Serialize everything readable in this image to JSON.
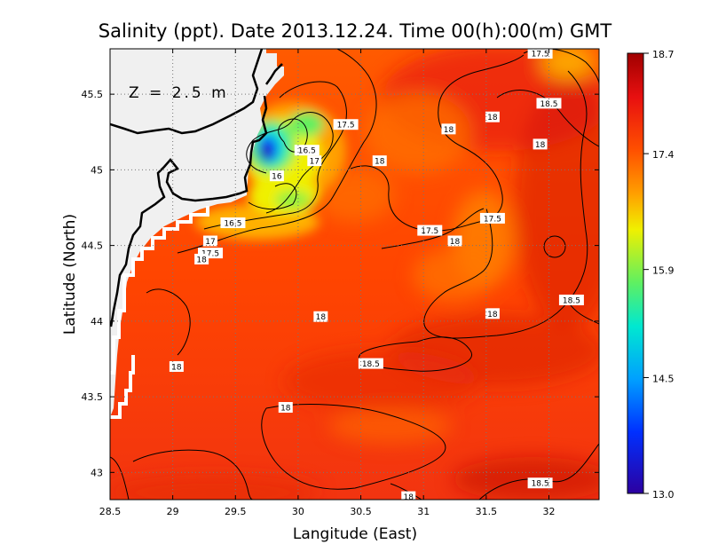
{
  "chart_data": {
    "type": "heatmap",
    "title": "Salinity (ppt). Date 2013.12.24. Time 00(h):00(m) GMT",
    "xlabel": "Langitude (East)",
    "ylabel": "Latitude (North)",
    "annotation": "Z = 2.5 m",
    "xlim": [
      28.5,
      32.4
    ],
    "ylim": [
      42.82,
      45.8
    ],
    "x_ticks": [
      "28.5",
      "29",
      "29.5",
      "30",
      "30.5",
      "31",
      "31.5",
      "32"
    ],
    "x_tick_values": [
      28.5,
      29,
      29.5,
      30,
      30.5,
      31,
      31.5,
      32
    ],
    "y_ticks": [
      "43",
      "43.5",
      "44",
      "44.5",
      "45",
      "45.5"
    ],
    "y_tick_values": [
      43,
      43.5,
      44,
      44.5,
      45,
      45.5
    ],
    "grid": true,
    "colorbar": {
      "min": 13.0,
      "max": 18.7,
      "tick_labels": [
        "18.7",
        "17.4",
        "15.9",
        "14.5",
        "13.0"
      ],
      "tick_values": [
        18.7,
        17.4,
        15.9,
        14.5,
        13.0
      ]
    },
    "contour_labels": [
      {
        "text": "17.5",
        "lon": 31.93,
        "lat": 45.77
      },
      {
        "text": "17.5",
        "lon": 30.38,
        "lat": 45.3
      },
      {
        "text": "18",
        "lon": 31.55,
        "lat": 45.35
      },
      {
        "text": "18.5",
        "lon": 32.0,
        "lat": 45.44
      },
      {
        "text": "18",
        "lon": 31.2,
        "lat": 45.27
      },
      {
        "text": "18",
        "lon": 31.93,
        "lat": 45.17
      },
      {
        "text": "16.5",
        "lon": 30.07,
        "lat": 45.13
      },
      {
        "text": "17",
        "lon": 30.13,
        "lat": 45.06
      },
      {
        "text": "18",
        "lon": 30.65,
        "lat": 45.06
      },
      {
        "text": "16",
        "lon": 29.83,
        "lat": 44.96
      },
      {
        "text": "16.5",
        "lon": 29.48,
        "lat": 44.65
      },
      {
        "text": "17.5",
        "lon": 31.55,
        "lat": 44.68
      },
      {
        "text": "17.5",
        "lon": 31.05,
        "lat": 44.6
      },
      {
        "text": "18",
        "lon": 31.25,
        "lat": 44.53
      },
      {
        "text": "17",
        "lon": 29.3,
        "lat": 44.53
      },
      {
        "text": "17.5",
        "lon": 29.3,
        "lat": 44.45
      },
      {
        "text": "18",
        "lon": 29.23,
        "lat": 44.41
      },
      {
        "text": "18.5",
        "lon": 32.18,
        "lat": 44.14
      },
      {
        "text": "18",
        "lon": 30.18,
        "lat": 44.03
      },
      {
        "text": "18",
        "lon": 31.55,
        "lat": 44.05
      },
      {
        "text": "18",
        "lon": 29.03,
        "lat": 43.7
      },
      {
        "text": "18.5",
        "lon": 30.58,
        "lat": 43.72
      },
      {
        "text": "18",
        "lon": 29.9,
        "lat": 43.43
      },
      {
        "text": "18.5",
        "lon": 31.93,
        "lat": 42.93
      },
      {
        "text": "18",
        "lon": 30.88,
        "lat": 42.84
      }
    ]
  },
  "colors": {
    "ramp": [
      "#2c00a0",
      "#0030ff",
      "#00a0ff",
      "#00e8d0",
      "#60f060",
      "#f0f000",
      "#ffa000",
      "#ff5000",
      "#e81010",
      "#a00000"
    ],
    "land": "#f0f0f0",
    "coast": "#000000"
  }
}
